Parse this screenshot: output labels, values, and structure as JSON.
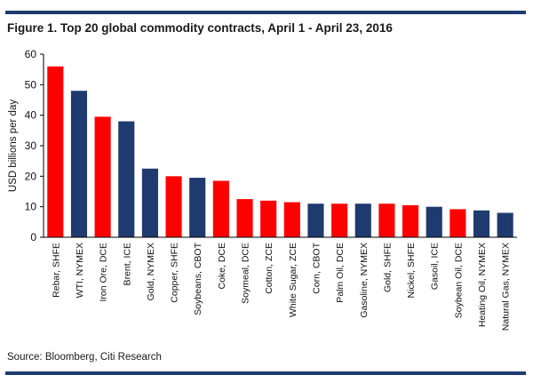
{
  "figure": {
    "title": "Figure 1. Top 20 global commodity contracts, April 1 - April 23, 2016",
    "source": "Source: Bloomberg, Citi Research"
  },
  "colors": {
    "red": "#ff0000",
    "navy": "#1f3a6e",
    "rule": "#1f3a6e"
  },
  "chart_data": {
    "type": "bar",
    "title": "Top 20 global commodity contracts, April 1 - April 23, 2016",
    "xlabel": "",
    "ylabel": "USD billions per day",
    "ylim": [
      0,
      60
    ],
    "yticks": [
      0,
      10,
      20,
      30,
      40,
      50,
      60
    ],
    "grid": false,
    "categories": [
      "Rebar, SHFE",
      "WTI, NYMEX",
      "Iron Ore, DCE",
      "Brent, ICE",
      "Gold, NYMEX",
      "Copper, SHFE",
      "Soybeans, CBOT",
      "Coke, DCE",
      "Soymeal, DCE",
      "Cotton, ZCE",
      "White Sugar, ZCE",
      "Corn, CBOT",
      "Palm Oil, DCE",
      "Gasoline, NYMEX",
      "Gold, SHFE",
      "Nickel, SHFE",
      "Gasoil, ICE",
      "Soybean Oil, DCE",
      "Heating Oil, NYMEX",
      "Natural Gas, NYMEX"
    ],
    "values": [
      56,
      48,
      39.5,
      38,
      22.5,
      20,
      19.5,
      18.5,
      12.5,
      12,
      11.5,
      11,
      11,
      11,
      11,
      10.5,
      10,
      9.2,
      8.8,
      8
    ],
    "bar_colors": [
      "red",
      "navy",
      "red",
      "navy",
      "navy",
      "red",
      "navy",
      "red",
      "red",
      "red",
      "red",
      "navy",
      "red",
      "navy",
      "red",
      "red",
      "navy",
      "red",
      "navy",
      "navy"
    ]
  }
}
